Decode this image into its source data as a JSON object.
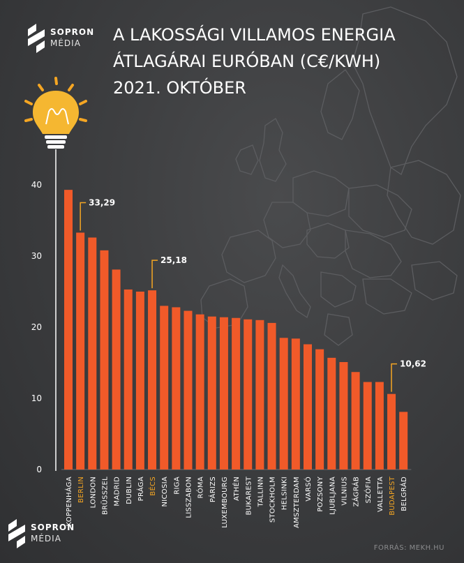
{
  "brand": {
    "line1": "SOPRON",
    "line2": "MÉDIA"
  },
  "title": {
    "line1": "A LAKOSSÁGI VILLAMOS ENERGIA",
    "line2": "ÁTLAGÁRAI EURÓBAN (C€/KWH)",
    "line3": "2021. OKTÓBER"
  },
  "source": "FORRÁS: MEKH.HU",
  "colors": {
    "bar": "#f15a29",
    "highlight": "#f5a623",
    "background": "#3d3e40",
    "text": "#ffffff"
  },
  "chart_data": {
    "type": "bar",
    "title": "A LAKOSSÁGI VILLAMOS ENERGIA ÁTLAGÁRAI EURÓBAN (C€/KWH) 2021. OKTÓBER",
    "categories": [
      "KOPPENHÁGA",
      "BERLIN",
      "LONDON",
      "BRÜSSZEL",
      "MADRID",
      "DUBLIN",
      "PRÁGA",
      "BÉCS",
      "NICOSIA",
      "RIGA",
      "LISSZABON",
      "RÓMA",
      "PÁRIZS",
      "LUXEMBOURG",
      "ATHÉN",
      "BUKAREST",
      "TALLINN",
      "STOCKHOLM",
      "HELSINKI",
      "AMSZTERDAM",
      "VARSÓ",
      "POZSONY",
      "LJUBLJANA",
      "VILNIUS",
      "ZÁGRÁB",
      "SZÓFIA",
      "VALLETTA",
      "BUDAPEST",
      "BELGRÁD"
    ],
    "values": [
      39.3,
      33.29,
      32.6,
      30.8,
      28.1,
      25.3,
      25.0,
      25.18,
      23.0,
      22.8,
      22.3,
      21.8,
      21.5,
      21.4,
      21.3,
      21.1,
      21.0,
      20.6,
      18.5,
      18.4,
      17.6,
      16.9,
      15.7,
      15.1,
      13.7,
      12.3,
      12.3,
      10.62,
      8.1
    ],
    "highlighted": [
      "BERLIN",
      "BÉCS",
      "BUDAPEST"
    ],
    "callouts": [
      {
        "category": "BERLIN",
        "label": "33,29"
      },
      {
        "category": "BÉCS",
        "label": "25,18"
      },
      {
        "category": "BUDAPEST",
        "label": "10,62"
      }
    ],
    "yticks": [
      "0",
      "10",
      "20",
      "30",
      "40"
    ],
    "ylim": [
      0,
      40
    ],
    "xlabel": "",
    "ylabel": "",
    "grid": false
  }
}
